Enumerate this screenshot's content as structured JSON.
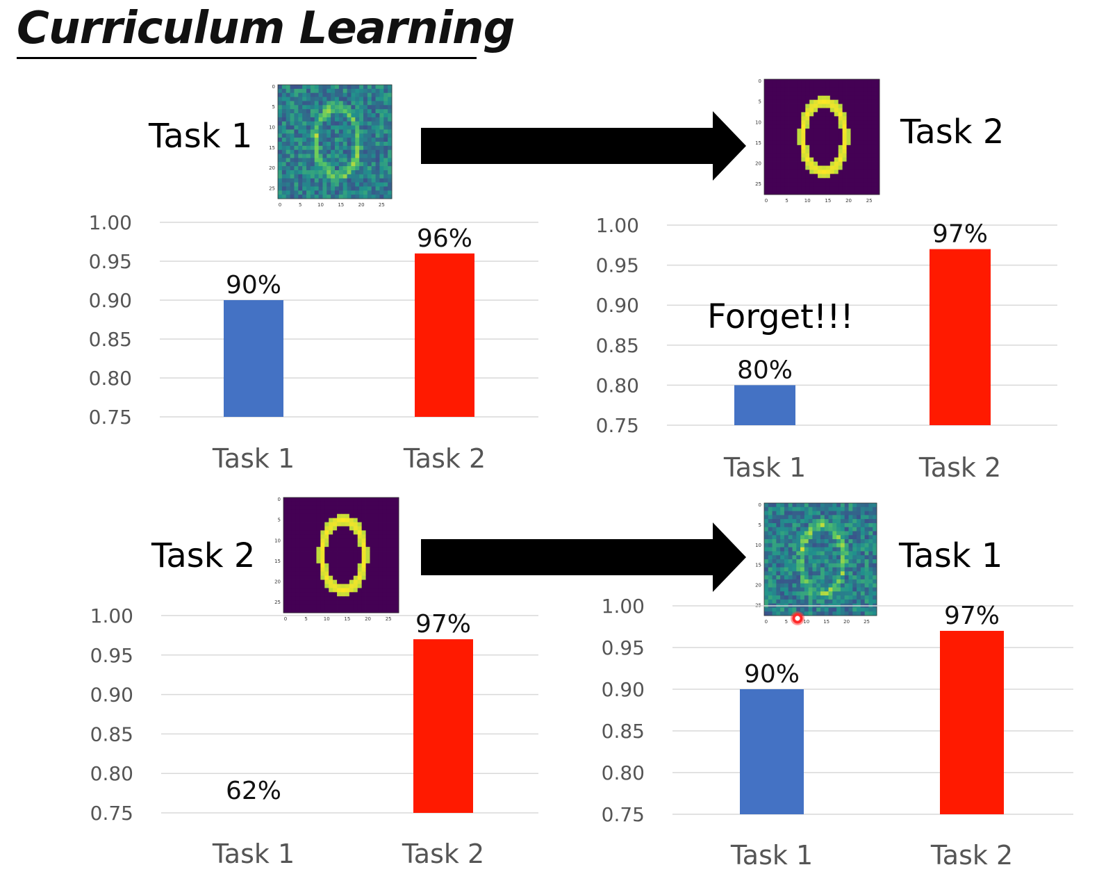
{
  "title": "Curriculum Learning",
  "labels": {
    "top_left_task": "Task 1",
    "top_right_task": "Task 2",
    "bottom_left_task": "Task 2",
    "bottom_right_task": "Task 1"
  },
  "annotation": "Forget!!!",
  "colors": {
    "task1_bar": "#4472c4",
    "task2_bar": "#ff1a00",
    "grid": "#d9d9d9",
    "arrow": "#000000"
  },
  "digit_images": {
    "noisy": {
      "name": "noisy-digit-zero",
      "colormap": "viridis",
      "ticks": [
        "0",
        "5",
        "10",
        "15",
        "20",
        "25"
      ]
    },
    "clean": {
      "name": "clean-digit-zero",
      "colormap": "viridis",
      "ticks": [
        "0",
        "5",
        "10",
        "15",
        "20",
        "25"
      ]
    }
  },
  "chart_data": [
    {
      "type": "bar",
      "categories": [
        "Task 1",
        "Task 2"
      ],
      "values": [
        0.9,
        0.96
      ],
      "data_labels": [
        "90%",
        "96%"
      ],
      "ylim": [
        0.75,
        1.0
      ],
      "yticks": [
        "1.00",
        "0.95",
        "0.90",
        "0.85",
        "0.80",
        "0.75"
      ],
      "grid": true
    },
    {
      "type": "bar",
      "categories": [
        "Task 1",
        "Task 2"
      ],
      "values": [
        0.8,
        0.97
      ],
      "data_labels": [
        "80%",
        "97%"
      ],
      "ylim": [
        0.75,
        1.0
      ],
      "yticks": [
        "1.00",
        "0.95",
        "0.90",
        "0.85",
        "0.80",
        "0.75"
      ],
      "grid": true
    },
    {
      "type": "bar",
      "categories": [
        "Task 1",
        "Task 2"
      ],
      "values": [
        0.62,
        0.97
      ],
      "data_labels": [
        "62%",
        "97%"
      ],
      "ylim": [
        0.75,
        1.0
      ],
      "yticks": [
        "1.00",
        "0.95",
        "0.90",
        "0.85",
        "0.80",
        "0.75"
      ],
      "grid": true
    },
    {
      "type": "bar",
      "categories": [
        "Task 1",
        "Task 2"
      ],
      "values": [
        0.9,
        0.97
      ],
      "data_labels": [
        "90%",
        "97%"
      ],
      "ylim": [
        0.75,
        1.0
      ],
      "yticks": [
        "1.00",
        "0.95",
        "0.90",
        "0.85",
        "0.80",
        "0.75"
      ],
      "grid": true
    }
  ]
}
